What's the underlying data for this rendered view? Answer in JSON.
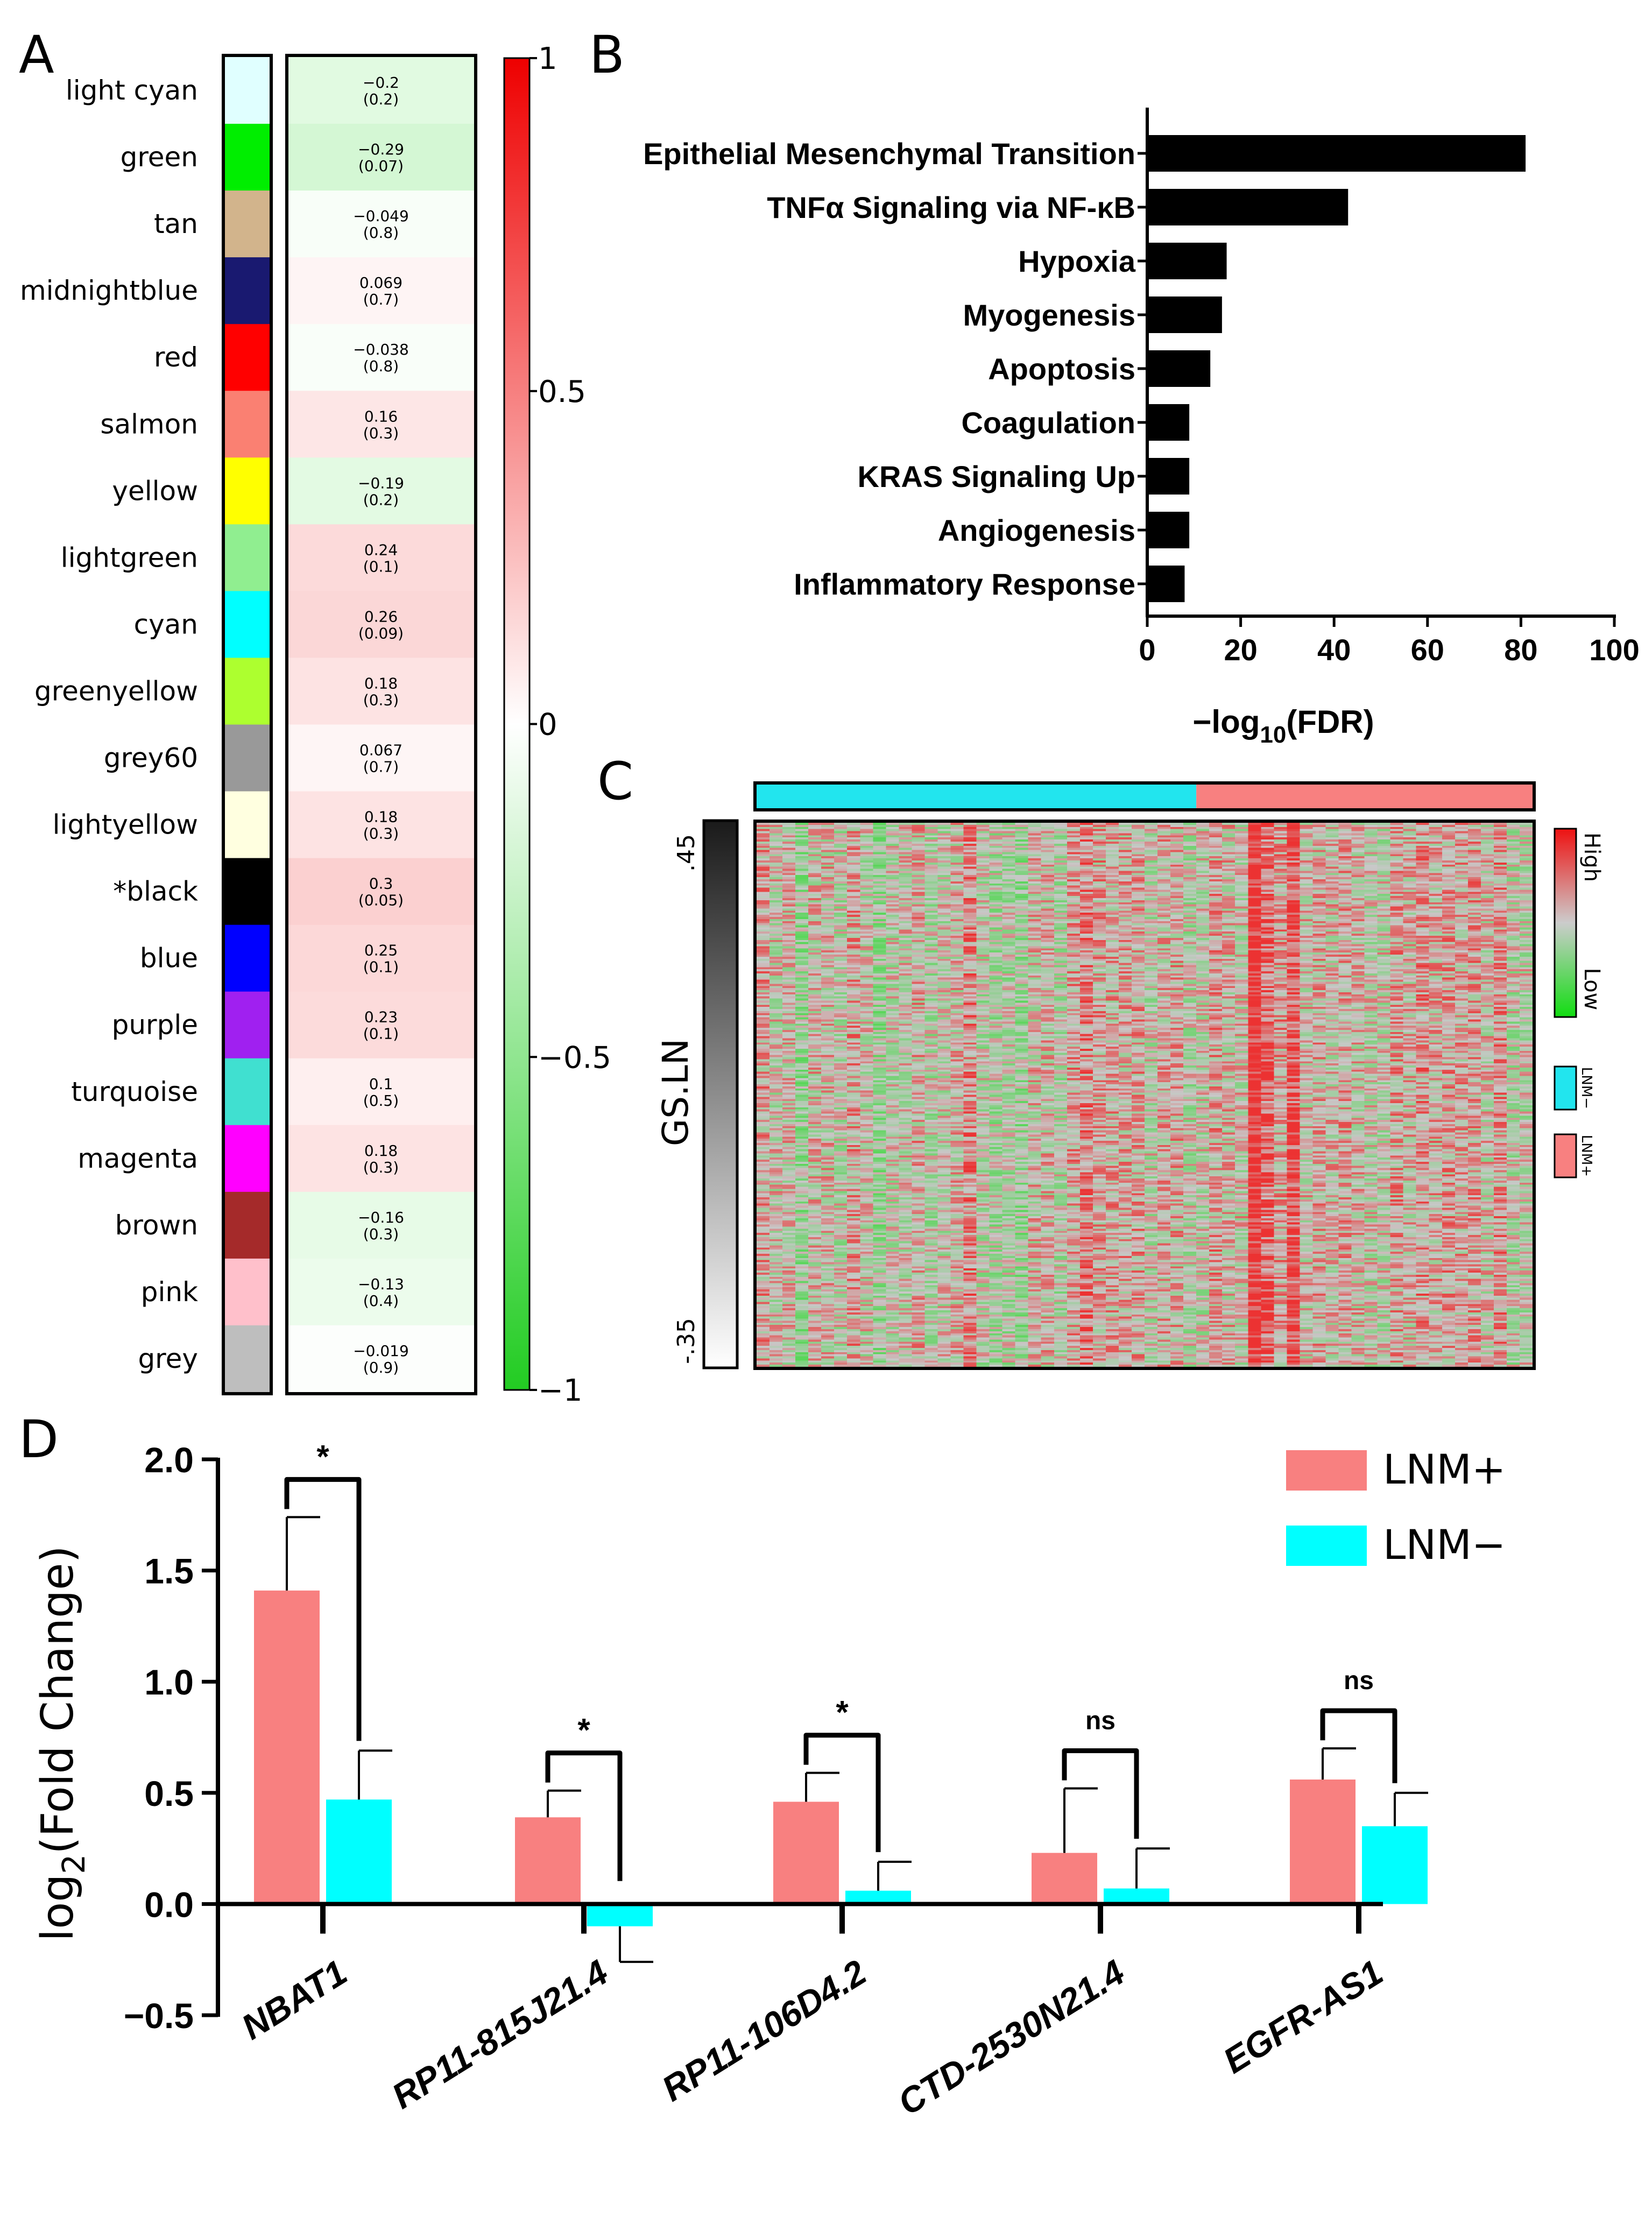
{
  "panels": {
    "A": {
      "label": "A",
      "modules": [
        {
          "name": "light cyan",
          "color": "#e0ffff",
          "r": -0.2,
          "r_text": "−0.2",
          "p_text": "(0.2)"
        },
        {
          "name": "green",
          "color": "#00ee00",
          "r": -0.29,
          "r_text": "−0.29",
          "p_text": "(0.07)"
        },
        {
          "name": "tan",
          "color": "#d2b48c",
          "r": -0.049,
          "r_text": "−0.049",
          "p_text": "(0.8)"
        },
        {
          "name": "midnightblue",
          "color": "#191970",
          "r": 0.069,
          "r_text": "0.069",
          "p_text": "(0.7)"
        },
        {
          "name": "red",
          "color": "#ff0000",
          "r": -0.038,
          "r_text": "−0.038",
          "p_text": "(0.8)"
        },
        {
          "name": "salmon",
          "color": "#fa8072",
          "r": 0.16,
          "r_text": "0.16",
          "p_text": "(0.3)"
        },
        {
          "name": "yellow",
          "color": "#ffff00",
          "r": -0.19,
          "r_text": "−0.19",
          "p_text": "(0.2)"
        },
        {
          "name": "lightgreen",
          "color": "#90ee90",
          "r": 0.24,
          "r_text": "0.24",
          "p_text": "(0.1)"
        },
        {
          "name": "cyan",
          "color": "#00ffff",
          "r": 0.26,
          "r_text": "0.26",
          "p_text": "(0.09)"
        },
        {
          "name": "greenyellow",
          "color": "#adff2f",
          "r": 0.18,
          "r_text": "0.18",
          "p_text": "(0.3)"
        },
        {
          "name": "grey60",
          "color": "#999999",
          "r": 0.067,
          "r_text": "0.067",
          "p_text": "(0.7)"
        },
        {
          "name": "lightyellow",
          "color": "#ffffe0",
          "r": 0.18,
          "r_text": "0.18",
          "p_text": "(0.3)"
        },
        {
          "name": "*black",
          "color": "#000000",
          "r": 0.3,
          "r_text": "0.3",
          "p_text": "(0.05)"
        },
        {
          "name": "blue",
          "color": "#0000ff",
          "r": 0.25,
          "r_text": "0.25",
          "p_text": "(0.1)"
        },
        {
          "name": "purple",
          "color": "#a020f0",
          "r": 0.23,
          "r_text": "0.23",
          "p_text": "(0.1)"
        },
        {
          "name": "turquoise",
          "color": "#40e0d0",
          "r": 0.1,
          "r_text": "0.1",
          "p_text": "(0.5)"
        },
        {
          "name": "magenta",
          "color": "#ff00ff",
          "r": 0.18,
          "r_text": "0.18",
          "p_text": "(0.3)"
        },
        {
          "name": "brown",
          "color": "#a52a2a",
          "r": -0.16,
          "r_text": "−0.16",
          "p_text": "(0.3)"
        },
        {
          "name": "pink",
          "color": "#ffc0cb",
          "r": -0.13,
          "r_text": "−0.13",
          "p_text": "(0.4)"
        },
        {
          "name": "grey",
          "color": "#bebebe",
          "r": -0.019,
          "r_text": "−0.019",
          "p_text": "(0.9)"
        }
      ],
      "colorbar": {
        "range": [
          -1,
          1
        ],
        "ticks": [
          "1",
          "0.5",
          "0",
          "−0.5",
          "−1"
        ],
        "low_color": "#22cc22",
        "mid_color": "#ffffff",
        "high_color": "#ee0000"
      }
    },
    "B": {
      "label": "B",
      "chart_data": {
        "type": "bar",
        "orientation": "horizontal",
        "categories": [
          "Epithelial Mesenchymal Transition",
          "TNFα Signaling via NF-κB",
          "Hypoxia",
          "Myogenesis",
          "Apoptosis",
          "Coagulation",
          "KRAS Signaling Up",
          "Angiogenesis",
          "Inflammatory Response"
        ],
        "values": [
          81,
          43,
          17,
          16,
          13.5,
          9,
          9,
          9,
          8
        ],
        "xlabel_main": "−log",
        "xlabel_sub": "10",
        "xlabel_tail": "(FDR)",
        "xlim": [
          0,
          100
        ],
        "xticks": [
          "0",
          "20",
          "40",
          "60",
          "80",
          "100"
        ],
        "bar_color": "#000000"
      }
    },
    "C": {
      "label": "C",
      "gs_label": "GS.LN",
      "gs_top": ".45",
      "gs_bottom": "-.35",
      "legend_high": "High",
      "legend_low": "Low",
      "group_neg": "LNM−",
      "group_pos": "LNM+",
      "color_neg": "#22e5ee",
      "color_pos": "#f88080",
      "n_samples": 60,
      "n_neg": 34
    },
    "D": {
      "label": "D",
      "chart_data": {
        "type": "bar",
        "categories": [
          "NBAT1",
          "RP11-815J21.4",
          "RP11-106D4.2",
          "CTD-2530N21.4",
          "EGFR-AS1"
        ],
        "series": [
          {
            "name": "LNM+",
            "color": "#f88080",
            "values": [
              1.41,
              0.39,
              0.46,
              0.23,
              0.56
            ],
            "errors": [
              0.33,
              0.12,
              0.13,
              0.29,
              0.14
            ]
          },
          {
            "name": "LNM−",
            "color": "#00ffff",
            "values": [
              0.47,
              -0.1,
              0.06,
              0.07,
              0.35
            ],
            "errors": [
              0.22,
              0.16,
              0.13,
              0.18,
              0.15
            ]
          }
        ],
        "significance": [
          "*",
          "*",
          "*",
          "ns",
          "ns"
        ],
        "ylabel_main": "log",
        "ylabel_sub": "2",
        "ylabel_tail": "(Fold Change)",
        "ylim": [
          -0.5,
          2.0
        ],
        "yticks": [
          "2.0",
          "1.5",
          "1.0",
          "0.5",
          "0.0",
          "−0.5"
        ],
        "ytick_values": [
          2.0,
          1.5,
          1.0,
          0.5,
          0.0,
          -0.5
        ]
      }
    }
  }
}
